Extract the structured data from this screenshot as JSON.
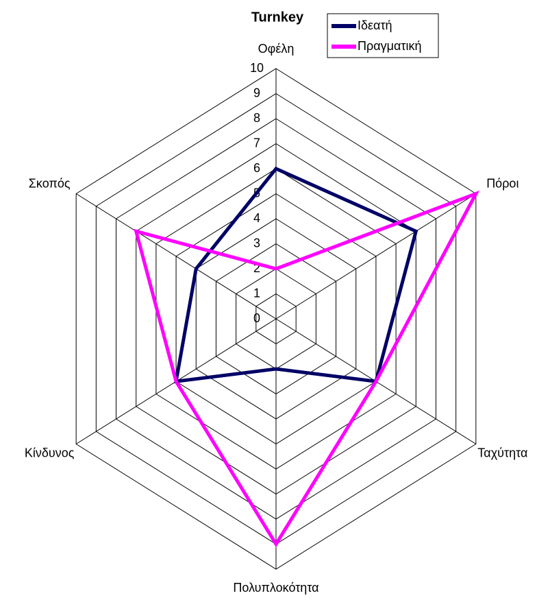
{
  "chart_data": {
    "type": "radar",
    "title": "Turnkey",
    "categories": [
      "Οφέλη",
      "Πόροι",
      "Ταχύτητα",
      "Πολυπλοκότητα",
      "Κίνδυνος",
      "Σκοπός"
    ],
    "series": [
      {
        "name": "Ιδεατή",
        "color": "#000066",
        "values": [
          6,
          7,
          5,
          2,
          5,
          4
        ]
      },
      {
        "name": "Πραγματική",
        "color": "#ff00ff",
        "values": [
          2,
          10,
          5,
          9,
          5,
          7
        ]
      }
    ],
    "ylim": [
      0,
      10
    ],
    "yticks": [
      0,
      1,
      2,
      3,
      4,
      5,
      6,
      7,
      8,
      9,
      10
    ],
    "grid": true,
    "legend": "top-right"
  }
}
